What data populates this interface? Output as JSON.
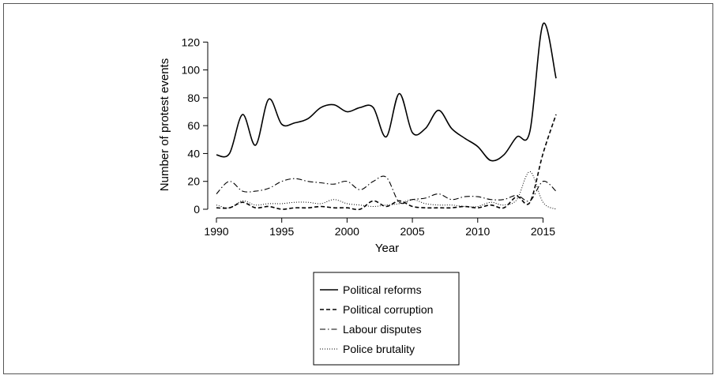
{
  "chart_data": {
    "type": "line",
    "xlabel": "Year",
    "ylabel": "Number of protest events",
    "xlim": [
      1990,
      2016
    ],
    "ylim": [
      0,
      140
    ],
    "xticks": [
      1990,
      1995,
      2000,
      2005,
      2010,
      2015
    ],
    "yticks": [
      0,
      20,
      40,
      60,
      80,
      100,
      120
    ],
    "grid": false,
    "legend_position": "below",
    "x": [
      1990,
      1991,
      1992,
      1993,
      1994,
      1995,
      1996,
      1997,
      1998,
      1999,
      2000,
      2001,
      2002,
      2003,
      2004,
      2005,
      2006,
      2007,
      2008,
      2009,
      2010,
      2011,
      2012,
      2013,
      2014,
      2015,
      2016
    ],
    "series": [
      {
        "name": "Political reforms",
        "dash": "solid",
        "values": [
          39,
          40,
          68,
          46,
          79,
          61,
          62,
          65,
          73,
          75,
          70,
          73,
          73,
          52,
          83,
          55,
          58,
          71,
          58,
          51,
          45,
          35,
          39,
          52,
          56,
          133,
          94
        ]
      },
      {
        "name": "Political corruption",
        "dash": "dashed",
        "values": [
          1,
          1,
          5,
          1,
          2,
          0,
          1,
          1,
          2,
          1,
          1,
          0,
          6,
          2,
          6,
          2,
          1,
          1,
          1,
          2,
          1,
          3,
          1,
          9,
          5,
          40,
          68
        ]
      },
      {
        "name": "Labour disputes",
        "dash": "dashdot",
        "values": [
          11,
          20,
          13,
          13,
          15,
          20,
          22,
          20,
          19,
          18,
          20,
          14,
          20,
          23,
          5,
          7,
          8,
          11,
          7,
          9,
          9,
          7,
          7,
          10,
          6,
          20,
          13
        ]
      },
      {
        "name": "Police brutality",
        "dash": "dotted",
        "values": [
          3,
          1,
          6,
          3,
          4,
          4,
          5,
          5,
          4,
          7,
          4,
          3,
          2,
          3,
          4,
          7,
          4,
          3,
          3,
          2,
          2,
          5,
          3,
          7,
          27,
          5,
          0
        ]
      }
    ]
  }
}
